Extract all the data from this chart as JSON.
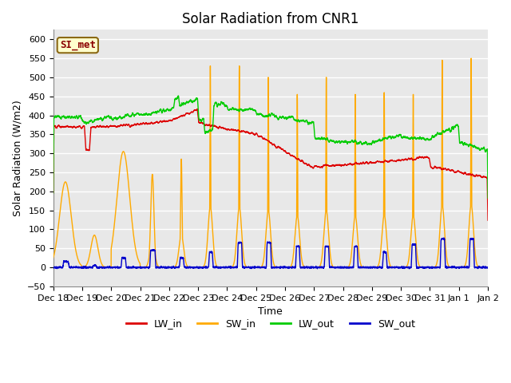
{
  "title": "Solar Radiation from CNR1",
  "xlabel": "Time",
  "ylabel": "Solar Radiation (W/m2)",
  "annotation": "SI_met",
  "ylim": [
    -50,
    625
  ],
  "yticks": [
    -50,
    0,
    50,
    100,
    150,
    200,
    250,
    300,
    350,
    400,
    450,
    500,
    550,
    600
  ],
  "series_colors": {
    "LW_in": "#dd0000",
    "SW_in": "#ffaa00",
    "LW_out": "#00cc00",
    "SW_out": "#0000cc"
  },
  "background_color": "#ffffff",
  "plot_bg_color": "#e8e8e8",
  "grid_color": "#ffffff",
  "title_fontsize": 12,
  "axis_fontsize": 9,
  "tick_fontsize": 8,
  "legend_fontsize": 9,
  "line_width": 1.0,
  "num_days": 15,
  "start_day": 18
}
